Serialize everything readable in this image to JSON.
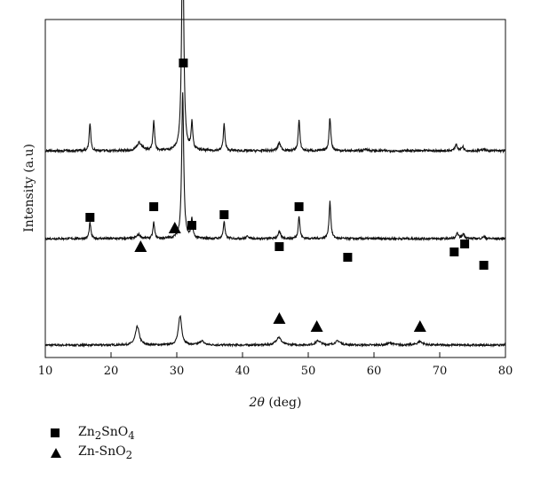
{
  "chart_data": {
    "type": "line",
    "xlabel_italic": "2θ",
    "xlabel_rest": " (deg)",
    "ylabel": "Intensity (a.u)",
    "xlim": [
      10,
      80
    ],
    "x_ticks": [
      10,
      20,
      30,
      40,
      50,
      60,
      70,
      80
    ],
    "y_ticks_shown": false,
    "grid": false,
    "legend_position": "bottom-left, below plot",
    "legend": [
      {
        "marker": "square",
        "base": "Zn",
        "sub1": "2",
        "mid": "SnO",
        "sub2": "4"
      },
      {
        "marker": "triangle",
        "base": "Zn-SnO",
        "sub1": "2",
        "mid": "",
        "sub2": ""
      }
    ],
    "series": [
      {
        "offset": 0,
        "baseline": 1.0,
        "noise": 0.35,
        "peaks": [
          [
            24.0,
            7.0,
            0.35
          ],
          [
            30.5,
            11.0,
            0.3
          ],
          [
            33.8,
            1.5,
            0.4
          ],
          [
            45.5,
            3.0,
            0.45
          ],
          [
            51.5,
            1.6,
            0.45
          ],
          [
            54.5,
            1.5,
            0.5
          ],
          [
            62.5,
            0.8,
            0.5
          ],
          [
            67.0,
            1.3,
            0.5
          ]
        ]
      },
      {
        "offset": 40,
        "baseline": 1.0,
        "noise": 0.4,
        "peaks": [
          [
            16.8,
            6.0,
            0.15
          ],
          [
            24.2,
            1.5,
            0.35
          ],
          [
            26.5,
            6.0,
            0.15
          ],
          [
            30.9,
            55.0,
            0.18
          ],
          [
            32.3,
            7.0,
            0.15
          ],
          [
            37.2,
            6.5,
            0.15
          ],
          [
            40.8,
            1.0,
            0.2
          ],
          [
            45.6,
            2.5,
            0.25
          ],
          [
            48.6,
            8.5,
            0.15
          ],
          [
            53.3,
            14.0,
            0.16
          ],
          [
            72.7,
            2.0,
            0.2
          ],
          [
            73.6,
            1.8,
            0.2
          ],
          [
            76.7,
            0.8,
            0.2
          ]
        ]
      },
      {
        "offset": 72,
        "baseline": 2.0,
        "noise": 0.45,
        "peaks": [
          [
            16.8,
            10.0,
            0.15
          ],
          [
            24.3,
            3.0,
            0.45
          ],
          [
            26.5,
            11.0,
            0.15
          ],
          [
            30.9,
            90.0,
            0.18
          ],
          [
            32.3,
            10.0,
            0.15
          ],
          [
            37.2,
            10.0,
            0.15
          ],
          [
            45.6,
            3.0,
            0.25
          ],
          [
            48.6,
            11.5,
            0.15
          ],
          [
            53.3,
            12.5,
            0.16
          ],
          [
            58.8,
            0.7,
            0.3
          ],
          [
            72.5,
            2.5,
            0.2
          ],
          [
            73.5,
            1.6,
            0.2
          ],
          [
            76.7,
            0.8,
            0.2
          ]
        ]
      }
    ],
    "square_markers": [
      {
        "x": 16.8,
        "y": 49
      },
      {
        "x": 26.5,
        "y": 53
      },
      {
        "x": 31.0,
        "y": 107
      },
      {
        "x": 32.3,
        "y": 46
      },
      {
        "x": 37.2,
        "y": 50
      },
      {
        "x": 45.6,
        "y": 38
      },
      {
        "x": 48.6,
        "y": 53
      },
      {
        "x": 56.0,
        "y": 34
      },
      {
        "x": 72.2,
        "y": 36
      },
      {
        "x": 73.8,
        "y": 39
      },
      {
        "x": 76.7,
        "y": 31
      }
    ],
    "triangle_markers": [
      {
        "x": 24.5,
        "y": 38
      },
      {
        "x": 29.7,
        "y": 45
      },
      {
        "x": 45.6,
        "y": 11
      },
      {
        "x": 51.3,
        "y": 8
      },
      {
        "x": 67.0,
        "y": 8
      }
    ],
    "colors": {
      "line": "#111111",
      "marker": "#000000",
      "axis": "#111111"
    }
  }
}
